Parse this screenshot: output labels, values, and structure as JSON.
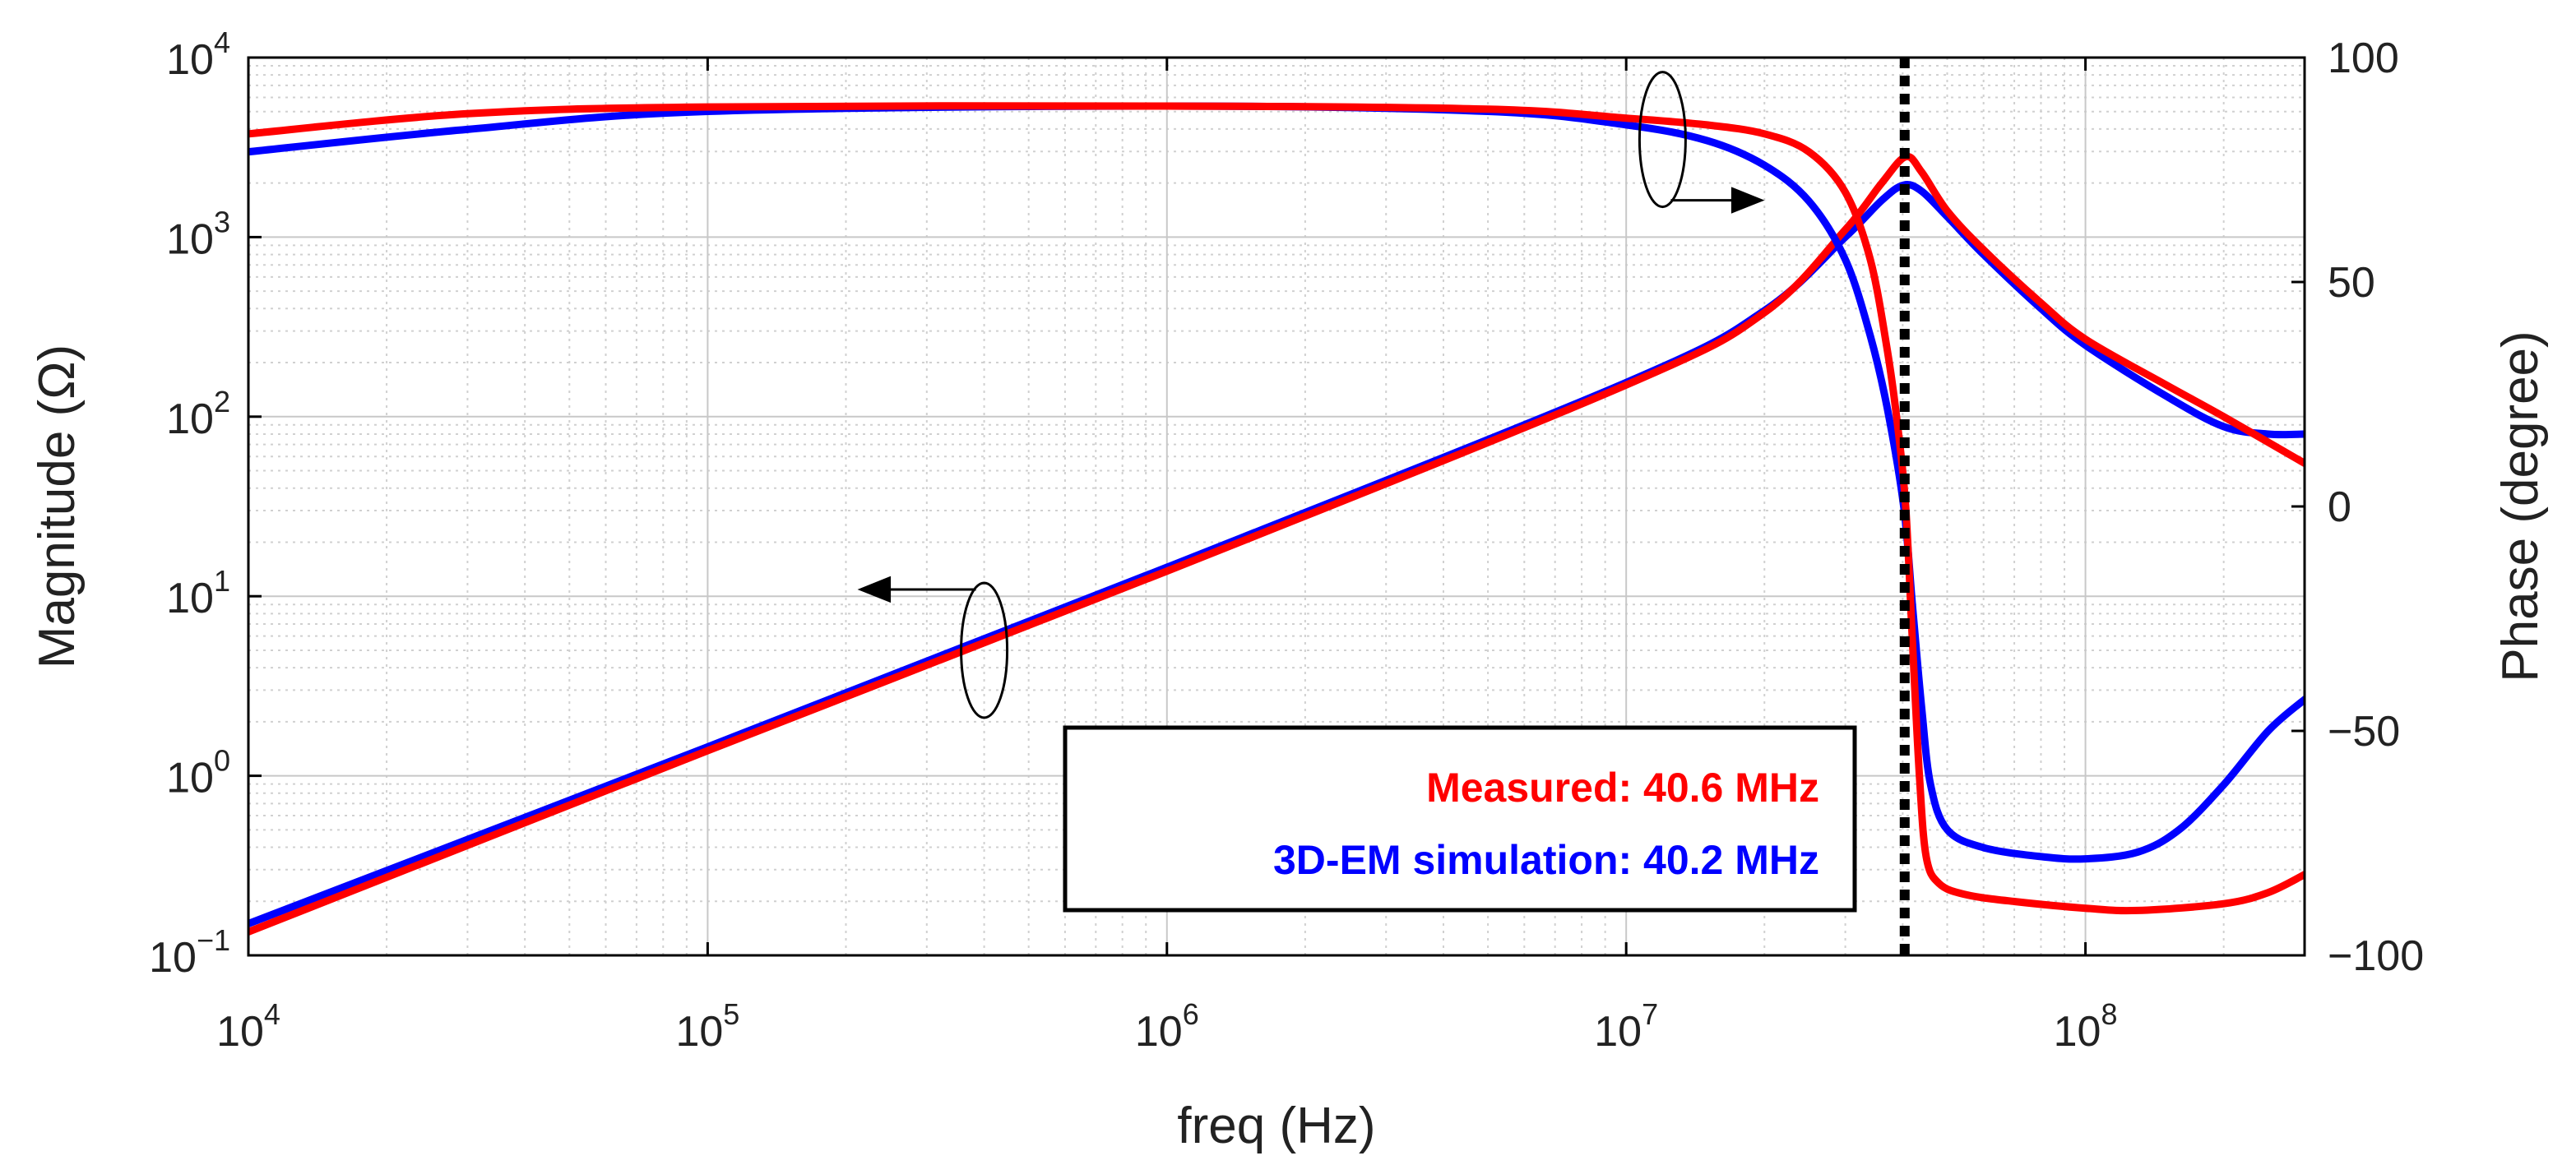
{
  "chart_data": {
    "type": "line",
    "title": "",
    "xlabel": "freq (Hz)",
    "ylabel_left": "Magnitude (Ω)",
    "ylabel_right": "Phase (degree)",
    "xscale": "log",
    "xlim": [
      10000,
      300000000
    ],
    "ylim_left": [
      0.1,
      10000
    ],
    "ylim_right": [
      -100,
      100
    ],
    "grid": true,
    "x_ticks": [
      {
        "value": 10000,
        "base": "10",
        "exp": "4"
      },
      {
        "value": 100000,
        "base": "10",
        "exp": "5"
      },
      {
        "value": 1000000,
        "base": "10",
        "exp": "6"
      },
      {
        "value": 10000000,
        "base": "10",
        "exp": "7"
      },
      {
        "value": 100000000,
        "base": "10",
        "exp": "8"
      }
    ],
    "y_left_ticks": [
      {
        "value": 0.1,
        "base": "10",
        "exp": "−1"
      },
      {
        "value": 1,
        "base": "10",
        "exp": "0"
      },
      {
        "value": 10,
        "base": "10",
        "exp": "1"
      },
      {
        "value": 100,
        "base": "10",
        "exp": "2"
      },
      {
        "value": 1000,
        "base": "10",
        "exp": "3"
      },
      {
        "value": 10000,
        "base": "10",
        "exp": "4"
      }
    ],
    "y_right_ticks": [
      {
        "value": 100,
        "label": "100"
      },
      {
        "value": 50,
        "label": "50"
      },
      {
        "value": 0,
        "label": "0"
      },
      {
        "value": -50,
        "label": "−50"
      },
      {
        "value": -100,
        "label": "−100"
      }
    ],
    "resonance_marker": {
      "x": 40400000,
      "style": "dotted"
    },
    "series": [
      {
        "name": "Measured magnitude",
        "color": "#ff0000",
        "axis": "left",
        "points": [
          [
            10000,
            0.135
          ],
          [
            100000,
            1.38
          ],
          [
            1000000,
            13.8
          ],
          [
            10000000,
            150
          ],
          [
            20000000,
            380
          ],
          [
            30000000,
            1100
          ],
          [
            36000000,
            2000
          ],
          [
            40600000,
            2800
          ],
          [
            44000000,
            2300
          ],
          [
            50000000,
            1400
          ],
          [
            60000000,
            850
          ],
          [
            80000000,
            430
          ],
          [
            100000000,
            270
          ],
          [
            150000000,
            150
          ],
          [
            200000000,
            100
          ],
          [
            300000000,
            55
          ]
        ]
      },
      {
        "name": "3D-EM simulation magnitude",
        "color": "#0000ff",
        "axis": "left",
        "points": [
          [
            10000,
            0.15
          ],
          [
            100000,
            1.45
          ],
          [
            1000000,
            14.5
          ],
          [
            10000000,
            155
          ],
          [
            20000000,
            390
          ],
          [
            30000000,
            1000
          ],
          [
            36000000,
            1600
          ],
          [
            40200000,
            1950
          ],
          [
            44000000,
            1800
          ],
          [
            50000000,
            1300
          ],
          [
            60000000,
            800
          ],
          [
            80000000,
            400
          ],
          [
            100000000,
            250
          ],
          [
            150000000,
            130
          ],
          [
            200000000,
            88
          ],
          [
            250000000,
            80
          ],
          [
            300000000,
            80
          ]
        ]
      },
      {
        "name": "Measured phase",
        "color": "#ff0000",
        "axis": "right",
        "points": [
          [
            10000,
            83
          ],
          [
            30000,
            87.5
          ],
          [
            100000,
            89
          ],
          [
            1000000,
            89.2
          ],
          [
            5000000,
            88.5
          ],
          [
            10000000,
            86.5
          ],
          [
            15000000,
            85
          ],
          [
            20000000,
            83
          ],
          [
            25000000,
            79
          ],
          [
            30000000,
            70
          ],
          [
            34000000,
            55
          ],
          [
            37000000,
            35
          ],
          [
            39000000,
            18
          ],
          [
            40600000,
            0
          ],
          [
            42000000,
            -30
          ],
          [
            43500000,
            -60
          ],
          [
            45000000,
            -78
          ],
          [
            48000000,
            -84
          ],
          [
            55000000,
            -86.5
          ],
          [
            70000000,
            -88
          ],
          [
            100000000,
            -89.5
          ],
          [
            130000000,
            -90
          ],
          [
            200000000,
            -88.5
          ],
          [
            250000000,
            -86
          ],
          [
            300000000,
            -82
          ]
        ]
      },
      {
        "name": "3D-EM simulation phase",
        "color": "#0000ff",
        "axis": "right",
        "points": [
          [
            10000,
            79
          ],
          [
            30000,
            84
          ],
          [
            100000,
            88
          ],
          [
            1000000,
            89.2
          ],
          [
            5000000,
            88
          ],
          [
            10000000,
            85
          ],
          [
            15000000,
            81.5
          ],
          [
            20000000,
            76
          ],
          [
            25000000,
            68
          ],
          [
            30000000,
            55
          ],
          [
            34000000,
            38
          ],
          [
            37000000,
            22
          ],
          [
            40200000,
            0
          ],
          [
            42000000,
            -22
          ],
          [
            44000000,
            -45
          ],
          [
            46000000,
            -62
          ],
          [
            50000000,
            -72
          ],
          [
            60000000,
            -76
          ],
          [
            80000000,
            -78
          ],
          [
            100000000,
            -78.5
          ],
          [
            130000000,
            -77
          ],
          [
            160000000,
            -72
          ],
          [
            200000000,
            -62
          ],
          [
            250000000,
            -50
          ],
          [
            300000000,
            -43
          ]
        ]
      }
    ],
    "legend": {
      "position": "bottom-center",
      "entries": [
        {
          "text": "Measured: 40.6 MHz",
          "color": "#ff0000"
        },
        {
          "text": "3D-EM simulation: 40.2 MHz",
          "color": "#0000ff"
        }
      ]
    },
    "annotations": [
      {
        "kind": "axis-indicator",
        "direction": "right",
        "at": [
          12000000,
          3500
        ]
      },
      {
        "kind": "axis-indicator",
        "direction": "left",
        "at": [
          400000,
          5
        ]
      }
    ]
  }
}
